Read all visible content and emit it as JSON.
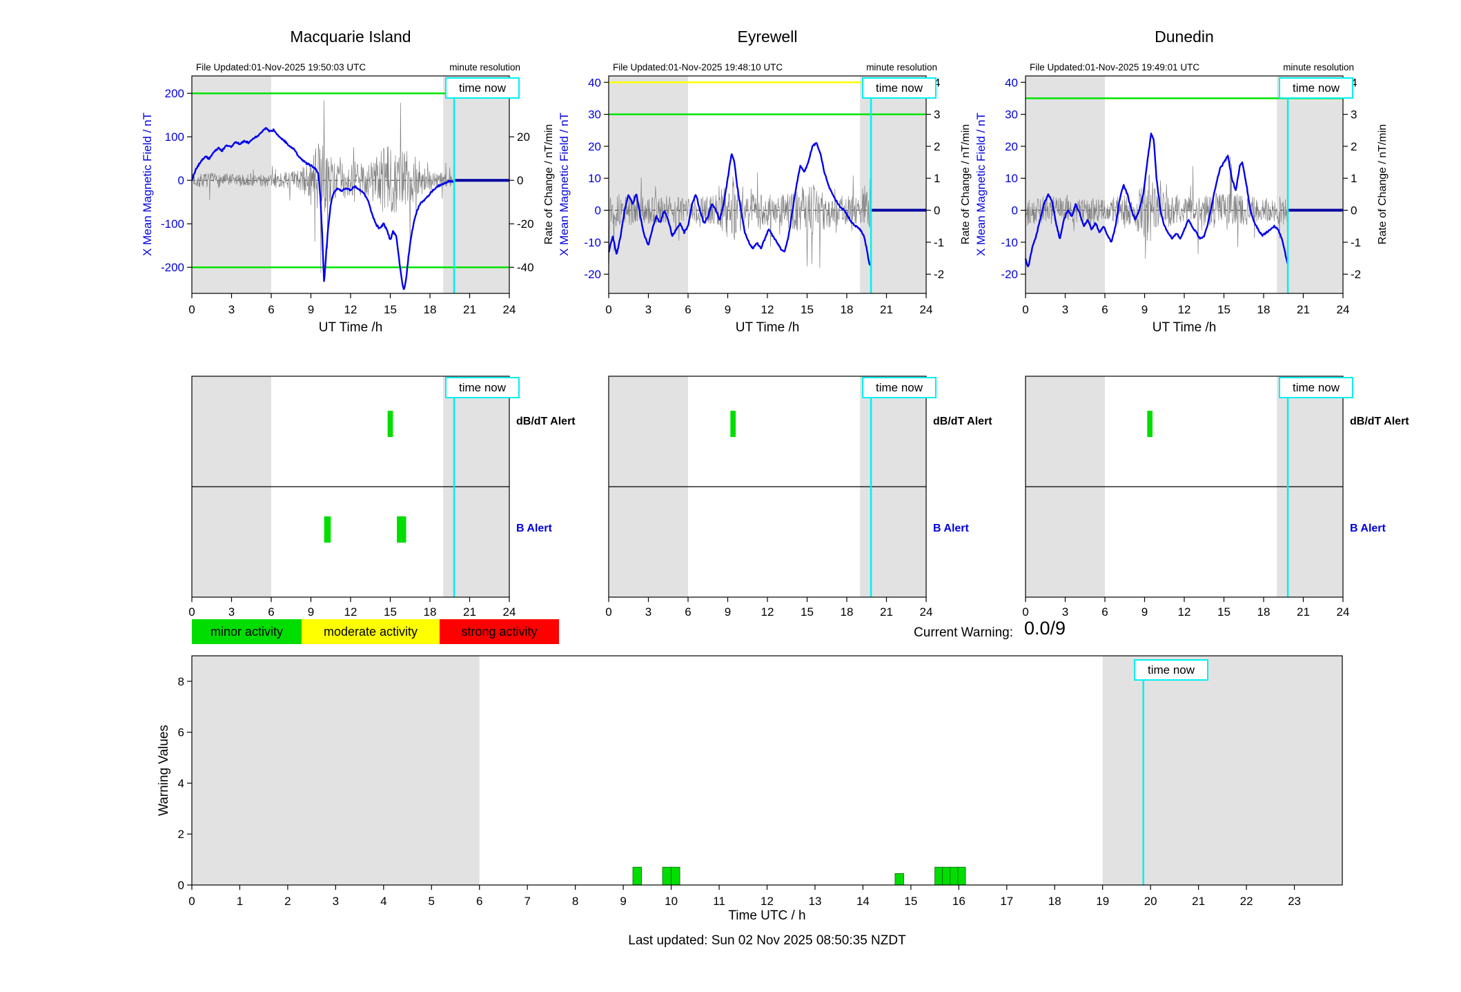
{
  "ui": {
    "time_now_label": "time now",
    "minute_resolution": "minute resolution",
    "alert_labels": {
      "dbdt": "dB/dT Alert",
      "b": "B Alert"
    },
    "legend": [
      {
        "label": "minor activity",
        "color": "#00dd00"
      },
      {
        "label": "moderate activity",
        "color": "#ffff00"
      },
      {
        "label": "strong activity",
        "color": "#ff0000"
      }
    ],
    "current_warning_label": "Current Warning:",
    "current_warning_value": "0.0/9",
    "last_updated": "Last updated: Sun 02 Nov 2025 08:50:35 NZDT",
    "colors": {
      "data_line": "#0000ee",
      "forecast_line": "#0000a0",
      "noise_line": "#808080",
      "threshold_green": "#00e400",
      "threshold_yellow": "#ffff00",
      "time_now_cyan": "#00f0f0",
      "shade_gray": "#e2e2e2",
      "alert_green": "#00dd00"
    }
  },
  "chart_data": [
    {
      "type": "line",
      "title": "Macquarie Island",
      "file_updated": "File Updated:01-Nov-2025 19:50:03 UTC",
      "xlabel": "UT Time /h",
      "xlim": [
        0,
        24
      ],
      "xticks": [
        0,
        3,
        6,
        9,
        12,
        15,
        18,
        21,
        24
      ],
      "left_axis": {
        "label": "X Mean Magnetic Field / nT",
        "lim": [
          -260,
          240
        ],
        "ticks": [
          -200,
          -100,
          0,
          100,
          200
        ],
        "color": "#0000dd"
      },
      "right_axis": {
        "label": "Rate of Change / nT/min",
        "lim": [
          -52,
          48
        ],
        "ticks": [
          -40,
          -20,
          0,
          20
        ]
      },
      "thresholds": [
        {
          "value": 200,
          "color": "#00e400"
        },
        {
          "value": -200,
          "color": "#00e400"
        }
      ],
      "shaded_x": [
        [
          0,
          6
        ],
        [
          19,
          24
        ]
      ],
      "time_now": 19.83,
      "series": [
        {
          "name": "X mean magnetic field",
          "color": "#0000ee",
          "x": [
            0,
            0.3,
            0.7,
            1.0,
            1.3,
            1.6,
            2.0,
            2.3,
            2.6,
            3.0,
            3.3,
            3.6,
            4.0,
            4.3,
            4.6,
            5.0,
            5.3,
            5.6,
            5.9,
            6.2,
            6.5,
            6.8,
            7.1,
            7.4,
            7.7,
            8.0,
            8.3,
            8.6,
            9.0,
            9.3,
            9.55,
            9.7,
            9.85,
            10.0,
            10.15,
            10.3,
            10.5,
            10.7,
            11.0,
            11.3,
            11.6,
            12.0,
            12.3,
            12.6,
            13.0,
            13.3,
            13.6,
            13.9,
            14.2,
            14.5,
            14.8,
            15.0,
            15.2,
            15.45,
            15.7,
            15.9,
            16.05,
            16.2,
            16.4,
            16.6,
            16.8,
            17.0,
            17.3,
            17.6,
            17.9,
            18.2,
            18.5,
            18.8,
            19.1,
            19.4,
            19.83
          ],
          "y": [
            0,
            25,
            45,
            55,
            50,
            62,
            75,
            68,
            80,
            78,
            88,
            84,
            90,
            86,
            95,
            102,
            112,
            120,
            112,
            116,
            104,
            95,
            88,
            78,
            72,
            58,
            48,
            40,
            34,
            28,
            18,
            -30,
            -120,
            -238,
            -170,
            -110,
            -55,
            -30,
            -18,
            -24,
            -18,
            -22,
            -14,
            -20,
            -28,
            -45,
            -75,
            -100,
            -112,
            -100,
            -118,
            -138,
            -118,
            -128,
            -190,
            -235,
            -252,
            -225,
            -170,
            -125,
            -95,
            -72,
            -52,
            -44,
            -34,
            -24,
            -16,
            -10,
            -6,
            -3,
            -2
          ]
        },
        {
          "name": "forecast",
          "color": "#0000a0",
          "x": [
            19.83,
            24
          ],
          "y": [
            0,
            0
          ]
        }
      ],
      "noise": {
        "name": "rate of change",
        "axis": "right",
        "seed": 7,
        "envelope_t": [
          0,
          2,
          4,
          6,
          7,
          8,
          9,
          9.4,
          9.8,
          10.3,
          11,
          12,
          13,
          13.6,
          14,
          14.5,
          15,
          15.5,
          16,
          16.5,
          17,
          17.5,
          18,
          18.5,
          19,
          19.83
        ],
        "envelope_amp": [
          6,
          6,
          5,
          6,
          7,
          9,
          16,
          30,
          32,
          22,
          15,
          17,
          14,
          18,
          24,
          28,
          30,
          27,
          29,
          22,
          15,
          12,
          9,
          7,
          6,
          5
        ]
      }
    },
    {
      "type": "line",
      "title": "Eyrewell",
      "file_updated": "File Updated:01-Nov-2025 19:48:10 UTC",
      "xlabel": "UT Time /h",
      "xlim": [
        0,
        24
      ],
      "xticks": [
        0,
        3,
        6,
        9,
        12,
        15,
        18,
        21,
        24
      ],
      "left_axis": {
        "label": "X Mean Magnetic Field / nT",
        "lim": [
          -26,
          42
        ],
        "ticks": [
          -20,
          -10,
          0,
          10,
          20,
          30,
          40
        ],
        "color": "#0000dd"
      },
      "right_axis": {
        "label": "Rate of Change / nT/min",
        "lim": [
          -2.6,
          4.2
        ],
        "ticks": [
          -2,
          -1,
          0,
          1,
          2,
          3,
          4
        ]
      },
      "thresholds": [
        {
          "value": 40,
          "color": "#ffff00"
        },
        {
          "value": 30,
          "color": "#00e400"
        }
      ],
      "shaded_x": [
        [
          0,
          6
        ],
        [
          19,
          24
        ]
      ],
      "time_now": 19.83,
      "series": [
        {
          "name": "X mean magnetic field",
          "color": "#0000ee",
          "x": [
            0,
            0.3,
            0.6,
            0.9,
            1.2,
            1.5,
            1.8,
            2.1,
            2.4,
            2.7,
            3.0,
            3.3,
            3.6,
            3.9,
            4.2,
            4.5,
            4.8,
            5.1,
            5.4,
            5.7,
            6.0,
            6.3,
            6.6,
            6.9,
            7.2,
            7.5,
            7.8,
            8.1,
            8.4,
            8.7,
            9.0,
            9.3,
            9.5,
            9.7,
            10.0,
            10.3,
            10.6,
            10.9,
            11.2,
            11.5,
            11.8,
            12.1,
            12.4,
            12.7,
            13.0,
            13.3,
            13.6,
            13.9,
            14.2,
            14.5,
            14.8,
            15.1,
            15.4,
            15.7,
            16.0,
            16.3,
            16.6,
            16.9,
            17.2,
            17.5,
            17.8,
            18.1,
            18.4,
            18.7,
            19.0,
            19.3,
            19.5,
            19.7,
            19.83
          ],
          "y": [
            -13,
            -8,
            -14,
            -8,
            0,
            5,
            2,
            5,
            -2,
            -8,
            -11,
            -6,
            -2,
            -4,
            0,
            -3,
            -8,
            -6,
            -4,
            -7,
            -5,
            2,
            5,
            0,
            -4,
            -2,
            2,
            0,
            -3,
            2,
            10,
            18,
            15,
            8,
            0,
            -7,
            -10,
            -12,
            -10,
            -12,
            -9,
            -6,
            -8,
            -10,
            -12,
            -13,
            -8,
            0,
            8,
            14,
            12,
            15,
            20,
            21,
            18,
            12,
            8,
            5,
            3,
            1,
            0,
            -2,
            -4,
            -5,
            -6,
            -8,
            -12,
            -17,
            -17
          ]
        },
        {
          "name": "forecast",
          "color": "#0000a0",
          "x": [
            19.83,
            24
          ],
          "y": [
            0,
            0
          ]
        }
      ],
      "noise": {
        "name": "rate of change",
        "axis": "right",
        "seed": 13,
        "envelope_t": [
          0,
          1,
          2,
          3,
          4,
          5,
          6,
          7,
          8,
          8.8,
          9.3,
          9.8,
          10.5,
          11,
          12,
          13,
          14,
          14.5,
          15,
          15.5,
          16,
          16.5,
          17,
          18,
          19,
          19.83
        ],
        "envelope_amp": [
          1.0,
          0.9,
          0.9,
          0.8,
          0.8,
          0.8,
          0.7,
          0.8,
          0.9,
          1.4,
          2.2,
          1.6,
          1.1,
          1.0,
          0.9,
          0.9,
          1.1,
          1.3,
          1.4,
          1.5,
          1.3,
          1.1,
          0.9,
          0.8,
          0.9,
          1.1
        ]
      }
    },
    {
      "type": "line",
      "title": "Dunedin",
      "file_updated": "File Updated:01-Nov-2025 19:49:01 UTC",
      "xlabel": "UT Time /h",
      "xlim": [
        0,
        24
      ],
      "xticks": [
        0,
        3,
        6,
        9,
        12,
        15,
        18,
        21,
        24
      ],
      "left_axis": {
        "label": "X Mean Magnetic Field / nT",
        "lim": [
          -26,
          42
        ],
        "ticks": [
          -20,
          -10,
          0,
          10,
          20,
          30,
          40
        ],
        "color": "#0000dd"
      },
      "right_axis": {
        "label": "Rate of Change / nT/min",
        "lim": [
          -2.6,
          4.2
        ],
        "ticks": [
          -2,
          -1,
          0,
          1,
          2,
          3,
          4
        ]
      },
      "thresholds": [
        {
          "value": 35,
          "color": "#00e400"
        }
      ],
      "shaded_x": [
        [
          0,
          6
        ],
        [
          19,
          24
        ]
      ],
      "time_now": 19.83,
      "series": [
        {
          "name": "X mean magnetic field",
          "color": "#0000ee",
          "x": [
            0,
            0.2,
            0.5,
            0.8,
            1.1,
            1.4,
            1.7,
            2.0,
            2.3,
            2.6,
            2.9,
            3.2,
            3.5,
            3.8,
            4.1,
            4.4,
            4.7,
            5.0,
            5.3,
            5.6,
            5.9,
            6.2,
            6.5,
            6.8,
            7.1,
            7.4,
            7.7,
            8.0,
            8.3,
            8.6,
            8.9,
            9.2,
            9.5,
            9.7,
            9.9,
            10.2,
            10.5,
            10.8,
            11.1,
            11.4,
            11.7,
            12.0,
            12.3,
            12.6,
            12.9,
            13.2,
            13.5,
            13.8,
            14.1,
            14.4,
            14.7,
            15.0,
            15.3,
            15.6,
            15.9,
            16.2,
            16.4,
            16.7,
            17.0,
            17.3,
            17.6,
            17.9,
            18.2,
            18.5,
            18.8,
            19.1,
            19.4,
            19.6,
            19.83
          ],
          "y": [
            -15,
            -18,
            -12,
            -8,
            -3,
            2,
            5,
            3,
            -4,
            -9,
            -3,
            0,
            -2,
            2,
            -1,
            -5,
            -3,
            -6,
            -4,
            -7,
            -5,
            -8,
            -10,
            -5,
            3,
            8,
            5,
            0,
            -3,
            0,
            5,
            15,
            24,
            22,
            10,
            0,
            -5,
            -7,
            -9,
            -7,
            -9,
            -6,
            -3,
            -5,
            -7,
            -9,
            -8,
            -4,
            2,
            8,
            13,
            15,
            17,
            10,
            6,
            14,
            15,
            8,
            0,
            -4,
            -6,
            -8,
            -7,
            -6,
            -5,
            -6,
            -9,
            -13,
            -17
          ]
        },
        {
          "name": "forecast",
          "color": "#0000a0",
          "x": [
            19.83,
            24
          ],
          "y": [
            0,
            0
          ]
        }
      ],
      "noise": {
        "name": "rate of change",
        "axis": "right",
        "seed": 29,
        "envelope_t": [
          0,
          1,
          2,
          3,
          4,
          5,
          6,
          7,
          8,
          8.8,
          9.3,
          9.8,
          10.5,
          11,
          12,
          13,
          14,
          14.5,
          15,
          15.5,
          16,
          16.5,
          17,
          18,
          19,
          19.83
        ],
        "envelope_amp": [
          0.9,
          0.8,
          0.8,
          0.7,
          0.7,
          0.7,
          0.7,
          0.8,
          0.9,
          1.5,
          2.4,
          1.6,
          1.0,
          0.9,
          0.8,
          0.8,
          1.0,
          1.1,
          1.2,
          1.1,
          1.0,
          0.9,
          0.8,
          0.7,
          0.8,
          0.9
        ]
      }
    }
  ],
  "alert_panels": [
    {
      "station": "Macquarie Island",
      "xticks": [
        0,
        3,
        6,
        9,
        12,
        15,
        18,
        21,
        24
      ],
      "shaded_x": [
        [
          0,
          6
        ],
        [
          19,
          24
        ]
      ],
      "time_now": 19.83,
      "dbdt_alerts": [
        [
          14.8,
          15.2
        ]
      ],
      "b_alerts": [
        [
          10.0,
          10.5
        ],
        [
          15.5,
          16.2
        ]
      ]
    },
    {
      "station": "Eyrewell",
      "xticks": [
        0,
        3,
        6,
        9,
        12,
        15,
        18,
        21,
        24
      ],
      "shaded_x": [
        [
          0,
          6
        ],
        [
          19,
          24
        ]
      ],
      "time_now": 19.83,
      "dbdt_alerts": [
        [
          9.2,
          9.6
        ]
      ],
      "b_alerts": []
    },
    {
      "station": "Dunedin",
      "xticks": [
        0,
        3,
        6,
        9,
        12,
        15,
        18,
        21,
        24
      ],
      "shaded_x": [
        [
          0,
          6
        ],
        [
          19,
          24
        ]
      ],
      "time_now": 19.83,
      "dbdt_alerts": [
        [
          9.2,
          9.6
        ]
      ],
      "b_alerts": []
    }
  ],
  "warning_chart": {
    "type": "bar",
    "ylabel": "Warning Values",
    "xlabel": "Time UTC / h",
    "ylim": [
      0,
      9
    ],
    "yticks": [
      0,
      2,
      4,
      6,
      8
    ],
    "xlim": [
      0,
      24
    ],
    "xticks": [
      0,
      1,
      2,
      3,
      4,
      5,
      6,
      7,
      8,
      9,
      10,
      11,
      12,
      13,
      14,
      15,
      16,
      17,
      18,
      19,
      20,
      21,
      22,
      23
    ],
    "shaded_x": [
      [
        0,
        6
      ],
      [
        19,
        24
      ]
    ],
    "time_now": 19.85,
    "bar_color": "#00dd00",
    "bars": [
      {
        "x0": 9.2,
        "x1": 9.38,
        "value": 0.7
      },
      {
        "x0": 9.82,
        "x1": 10.0,
        "value": 0.7
      },
      {
        "x0": 10.0,
        "x1": 10.18,
        "value": 0.7
      },
      {
        "x0": 14.67,
        "x1": 14.85,
        "value": 0.45
      },
      {
        "x0": 15.5,
        "x1": 15.66,
        "value": 0.7
      },
      {
        "x0": 15.66,
        "x1": 15.82,
        "value": 0.7
      },
      {
        "x0": 15.82,
        "x1": 15.98,
        "value": 0.7
      },
      {
        "x0": 15.98,
        "x1": 16.14,
        "value": 0.7
      }
    ]
  }
}
